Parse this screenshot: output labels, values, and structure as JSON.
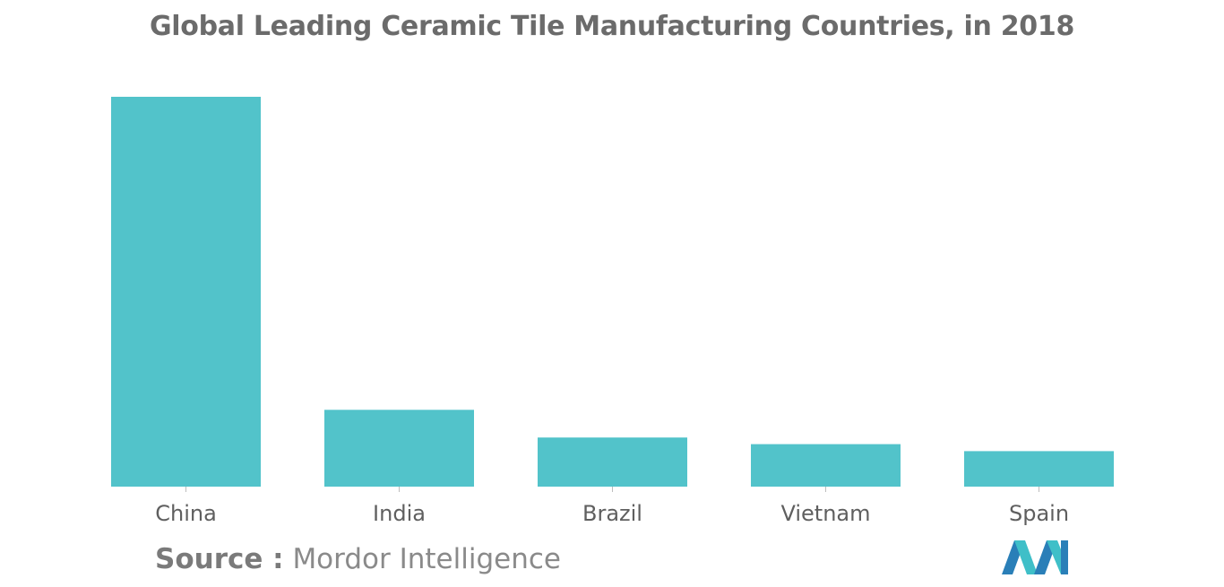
{
  "chart_data": {
    "type": "bar",
    "title": "Global Leading Ceramic Tile Manufacturing Countries, in 2018",
    "categories": [
      "China",
      "India",
      "Brazil",
      "Vietnam",
      "Spain"
    ],
    "values": [
      100,
      19.7,
      12.6,
      10.9,
      9.1
    ],
    "xlabel": "",
    "ylabel": "",
    "ylim": [
      0,
      100
    ],
    "grid": false,
    "bar_color": "#52c3ca"
  },
  "source": {
    "label": "Source :",
    "text": "Mordor Intelligence"
  },
  "logo": {
    "icon": "mordor-intelligence-logo-icon",
    "colors": [
      "#2a7fb8",
      "#3fbfc8"
    ]
  }
}
